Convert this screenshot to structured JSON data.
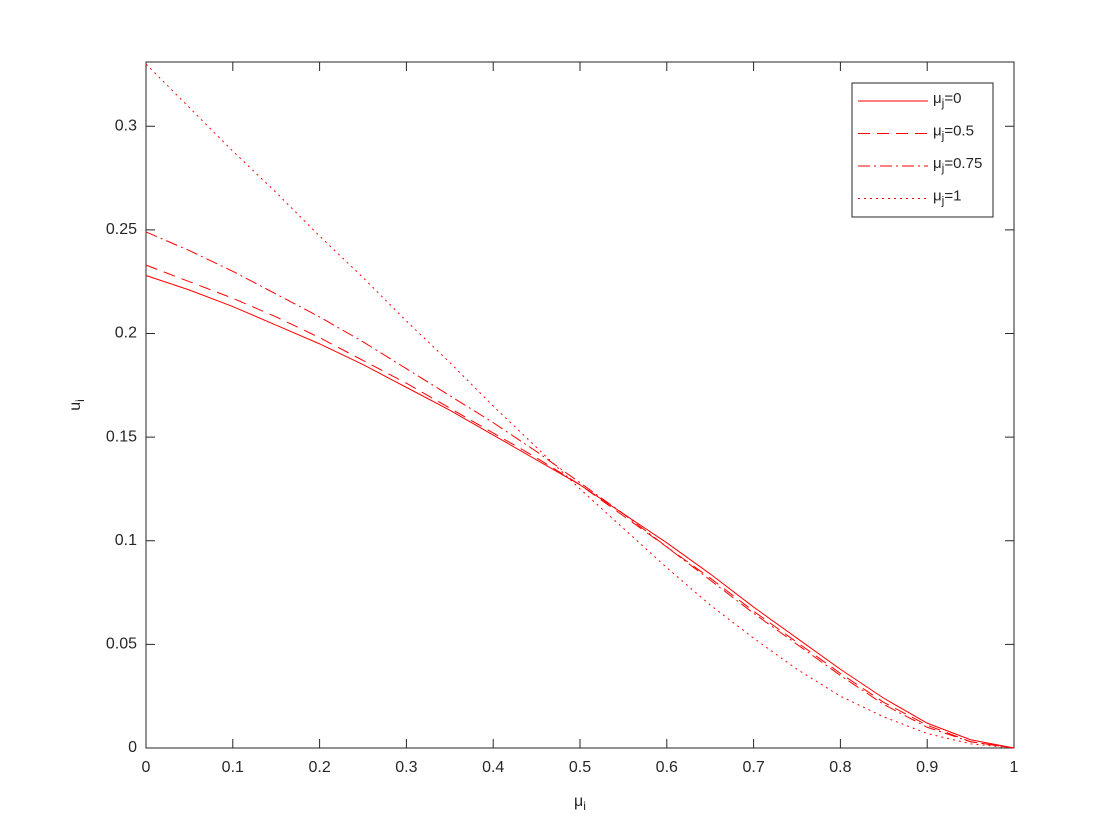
{
  "chart_data": {
    "type": "line",
    "xlabel": "μi",
    "ylabel": "ui",
    "x": [
      0,
      0.05,
      0.1,
      0.15,
      0.2,
      0.25,
      0.3,
      0.35,
      0.4,
      0.45,
      0.5,
      0.55,
      0.6,
      0.65,
      0.7,
      0.75,
      0.8,
      0.85,
      0.9,
      0.95,
      1
    ],
    "series": [
      {
        "name": "μj=0",
        "color": "#ff0000",
        "dash": "solid",
        "values": [
          0.228,
          0.221,
          0.213,
          0.204,
          0.195,
          0.185,
          0.174,
          0.163,
          0.151,
          0.139,
          0.127,
          0.113,
          0.099,
          0.084,
          0.068,
          0.053,
          0.038,
          0.024,
          0.012,
          0.004,
          0
        ]
      },
      {
        "name": "μj=0.5",
        "color": "#ff0000",
        "dash": "dashed",
        "values": [
          0.233,
          0.225,
          0.217,
          0.208,
          0.198,
          0.187,
          0.176,
          0.164,
          0.152,
          0.14,
          0.127,
          0.112,
          0.097,
          0.082,
          0.066,
          0.051,
          0.036,
          0.022,
          0.011,
          0.003,
          0
        ]
      },
      {
        "name": "μj=0.75",
        "color": "#ff0000",
        "dash": "dashdot",
        "values": [
          0.249,
          0.24,
          0.23,
          0.219,
          0.208,
          0.196,
          0.183,
          0.17,
          0.157,
          0.143,
          0.128,
          0.113,
          0.097,
          0.081,
          0.065,
          0.05,
          0.035,
          0.021,
          0.01,
          0.003,
          0
        ]
      },
      {
        "name": "μj=1",
        "color": "#ff0000",
        "dash": "dotted",
        "values": [
          0.33,
          0.309,
          0.288,
          0.268,
          0.247,
          0.227,
          0.206,
          0.186,
          0.165,
          0.145,
          0.125,
          0.106,
          0.087,
          0.069,
          0.053,
          0.038,
          0.025,
          0.015,
          0.007,
          0.002,
          0
        ]
      }
    ],
    "xlim": [
      0,
      1
    ],
    "xticks": [
      0,
      0.1,
      0.2,
      0.3,
      0.4,
      0.5,
      0.6,
      0.7,
      0.8,
      0.9,
      1
    ],
    "ylim": [
      0,
      0.331
    ],
    "yticks": [
      0,
      0.05,
      0.1,
      0.15,
      0.2,
      0.25,
      0.3
    ],
    "grid": false,
    "legend": "upper right"
  }
}
